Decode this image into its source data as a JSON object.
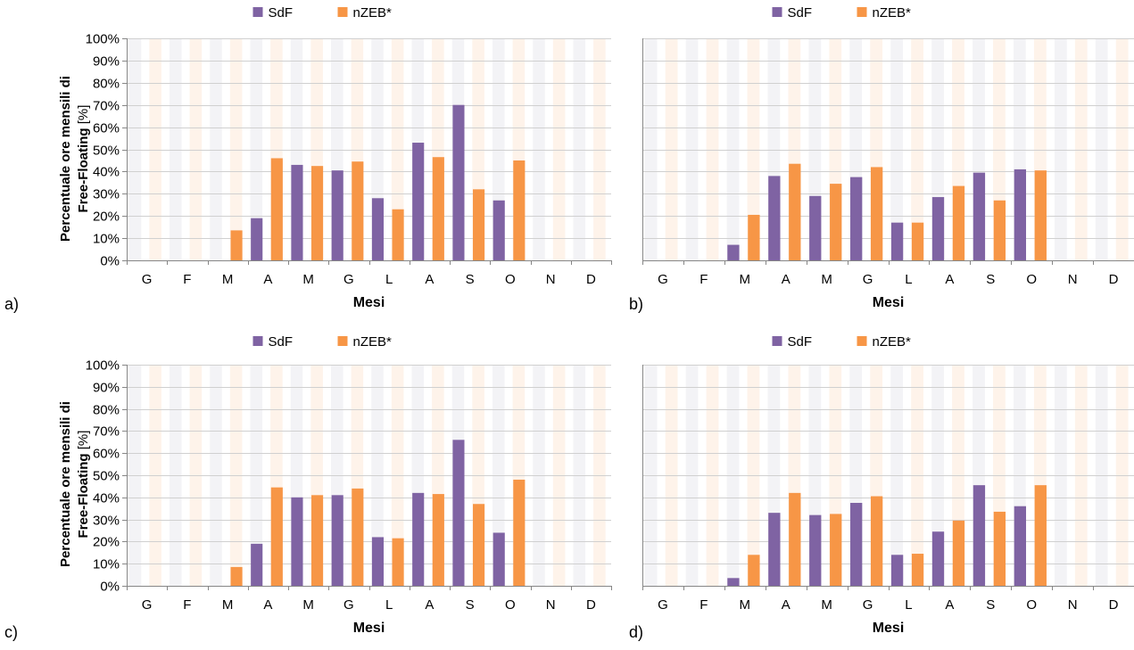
{
  "figure": {
    "ylabel_line1": "Percentuale ore mensili di",
    "ylabel_line2": "Free-Floating",
    "ylabel_unit": "[%]"
  },
  "chart_data": [
    {
      "type": "bar",
      "panel": "a)",
      "categories": [
        "G",
        "F",
        "M",
        "A",
        "M",
        "G",
        "L",
        "A",
        "S",
        "O",
        "N",
        "D"
      ],
      "series": [
        {
          "name": "SdF",
          "color": "#7f63a3",
          "values": [
            0,
            0,
            0,
            19,
            43,
            40.5,
            28,
            53,
            70,
            27,
            0,
            0
          ]
        },
        {
          "name": "nZEB*",
          "color": "#f79646",
          "values": [
            0,
            0,
            13.5,
            46,
            42.5,
            44.5,
            23,
            46.5,
            32,
            45,
            0,
            0
          ]
        }
      ],
      "xlabel": "Mesi",
      "ylabel": "Percentuale ore mensili di Free-Floating [%]",
      "ylim": [
        0,
        100
      ],
      "yticks": [
        "0%",
        "10%",
        "20%",
        "30%",
        "40%",
        "50%",
        "60%",
        "70%",
        "80%",
        "90%",
        "100%"
      ],
      "legend": "top-center",
      "grid": true
    },
    {
      "type": "bar",
      "panel": "b)",
      "categories": [
        "G",
        "F",
        "M",
        "A",
        "M",
        "G",
        "L",
        "A",
        "S",
        "O",
        "N",
        "D"
      ],
      "series": [
        {
          "name": "SdF",
          "color": "#7f63a3",
          "values": [
            0,
            0,
            7,
            38,
            29,
            37.5,
            17,
            28.5,
            39.5,
            41,
            0,
            0
          ]
        },
        {
          "name": "nZEB*",
          "color": "#f79646",
          "values": [
            0,
            0,
            20.5,
            43.5,
            34.5,
            42,
            17,
            33.5,
            27,
            40.5,
            0,
            0
          ]
        }
      ],
      "xlabel": "Mesi",
      "ylabel": "",
      "ylim": [
        0,
        100
      ],
      "legend": "top-center",
      "grid": true
    },
    {
      "type": "bar",
      "panel": "c)",
      "categories": [
        "G",
        "F",
        "M",
        "A",
        "M",
        "G",
        "L",
        "A",
        "S",
        "O",
        "N",
        "D"
      ],
      "series": [
        {
          "name": "SdF",
          "color": "#7f63a3",
          "values": [
            0,
            0,
            0,
            19,
            40,
            41,
            22,
            42,
            66,
            24,
            0,
            0
          ]
        },
        {
          "name": "nZEB*",
          "color": "#f79646",
          "values": [
            0,
            0,
            8.5,
            44.5,
            41,
            44,
            21.5,
            41.5,
            37,
            48,
            0,
            0
          ]
        }
      ],
      "xlabel": "Mesi",
      "ylabel": "Percentuale ore mensili di Free-Floating [%]",
      "ylim": [
        0,
        100
      ],
      "yticks": [
        "0%",
        "10%",
        "20%",
        "30%",
        "40%",
        "50%",
        "60%",
        "70%",
        "80%",
        "90%",
        "100%"
      ],
      "legend": "top-center",
      "grid": true
    },
    {
      "type": "bar",
      "panel": "d)",
      "categories": [
        "G",
        "F",
        "M",
        "A",
        "M",
        "G",
        "L",
        "A",
        "S",
        "O",
        "N",
        "D"
      ],
      "series": [
        {
          "name": "SdF",
          "color": "#7f63a3",
          "values": [
            0,
            0,
            3.5,
            33,
            32,
            37.5,
            14,
            24.5,
            45.5,
            36,
            0,
            0
          ]
        },
        {
          "name": "nZEB*",
          "color": "#f79646",
          "values": [
            0,
            0,
            14,
            42,
            32.5,
            40.5,
            14.5,
            29.5,
            33.5,
            45.5,
            0,
            0
          ]
        }
      ],
      "xlabel": "Mesi",
      "ylabel": "",
      "ylim": [
        0,
        100
      ],
      "legend": "top-center",
      "grid": true
    }
  ]
}
